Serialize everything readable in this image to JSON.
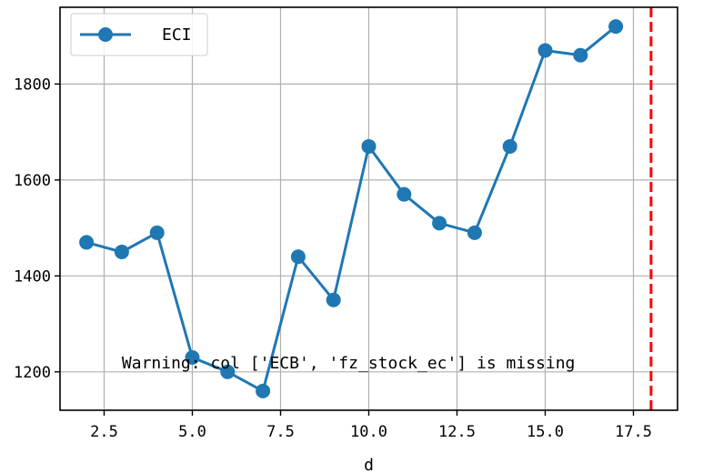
{
  "chart_data": {
    "type": "line",
    "title": "",
    "xlabel": "d",
    "ylabel": "",
    "xlim": [
      1.25,
      18.75
    ],
    "ylim": [
      1120,
      1960
    ],
    "xticks": [
      2.5,
      5.0,
      7.5,
      10.0,
      12.5,
      15.0,
      17.5
    ],
    "xtick_labels": [
      "2.5",
      "5.0",
      "7.5",
      "10.0",
      "12.5",
      "15.0",
      "17.5"
    ],
    "yticks": [
      1200,
      1400,
      1600,
      1800
    ],
    "ytick_labels": [
      "1200",
      "1400",
      "1600",
      "1800"
    ],
    "grid": true,
    "legend_position": "top-left",
    "series": [
      {
        "name": "ECI",
        "color": "#1f77b4",
        "marker": "circle",
        "x": [
          2,
          3,
          4,
          5,
          6,
          7,
          8,
          9,
          10,
          11,
          12,
          13,
          14,
          15,
          16,
          17
        ],
        "y": [
          1470,
          1450,
          1490,
          1230,
          1200,
          1160,
          1440,
          1350,
          1670,
          1570,
          1510,
          1490,
          1670,
          1870,
          1860,
          1920
        ]
      }
    ],
    "vline": {
      "x": 18,
      "color": "#ff0000",
      "style": "dashed"
    },
    "annotation": {
      "text": "Warning: col ['ECB', 'fz_stock_ec'] is missing",
      "x": 3.0,
      "y": 1200
    }
  }
}
